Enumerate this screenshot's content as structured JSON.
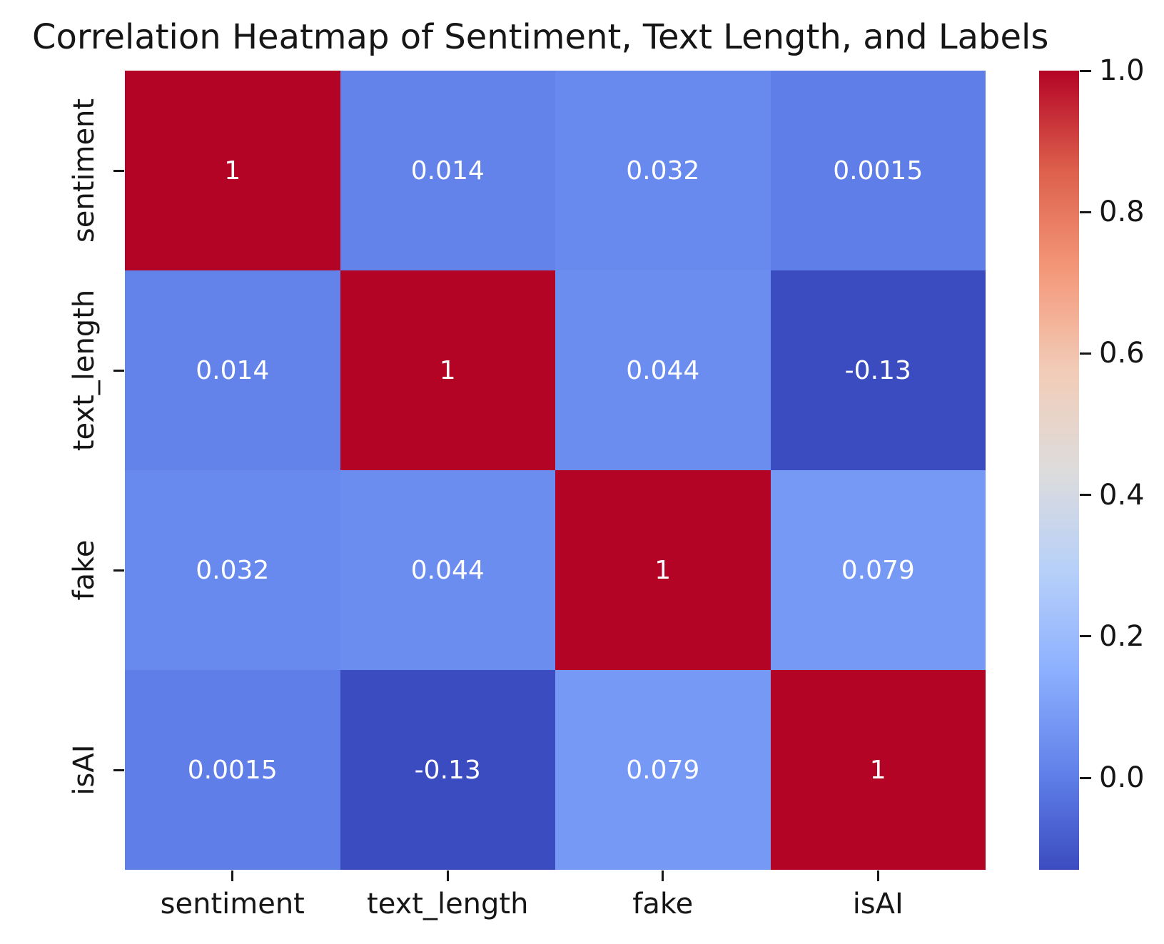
{
  "title": "Correlation Heatmap of Sentiment, Text Length, and Labels",
  "chart_data": {
    "type": "heatmap",
    "title": "Correlation Heatmap of Sentiment, Text Length, and Labels",
    "x_categories": [
      "sentiment",
      "text_length",
      "fake",
      "isAI"
    ],
    "y_categories": [
      "sentiment",
      "text_length",
      "fake",
      "isAI"
    ],
    "matrix": [
      [
        1,
        0.014,
        0.032,
        0.0015
      ],
      [
        0.014,
        1,
        0.044,
        -0.13
      ],
      [
        0.032,
        0.044,
        1,
        0.079
      ],
      [
        0.0015,
        -0.13,
        0.079,
        1
      ]
    ],
    "cell_labels": [
      [
        "1",
        "0.014",
        "0.032",
        "0.0015"
      ],
      [
        "0.014",
        "1",
        "0.044",
        "-0.13"
      ],
      [
        "0.032",
        "0.044",
        "1",
        "0.079"
      ],
      [
        "0.0015",
        "-0.13",
        "0.079",
        "1"
      ]
    ],
    "cell_colors": [
      [
        "#b40426",
        "#6383eb",
        "#6889ee",
        "#5f7ee8"
      ],
      [
        "#6383eb",
        "#b40426",
        "#6b8df0",
        "#3b4cc0"
      ],
      [
        "#6889ee",
        "#6b8df0",
        "#b40426",
        "#7699f6"
      ],
      [
        "#5f7ee8",
        "#3b4cc0",
        "#7699f6",
        "#b40426"
      ]
    ],
    "colormap": "coolwarm",
    "vmin": -0.13,
    "vmax": 1.0,
    "annotation_color": "#ffffff",
    "grid": false,
    "colorbar": {
      "position": "right",
      "ticks": [
        1.0,
        0.8,
        0.6,
        0.4,
        0.2,
        0.0
      ],
      "tick_labels": [
        "1.0",
        "0.8",
        "0.6",
        "0.4",
        "0.2",
        "0.0"
      ],
      "gradient_stops": [
        "#b40426",
        "#dd604c",
        "#f4987a",
        "#f2ccb7",
        "#dddcdc",
        "#b7d0f9",
        "#8db0fe",
        "#6282ea",
        "#3b4cc0"
      ]
    }
  }
}
